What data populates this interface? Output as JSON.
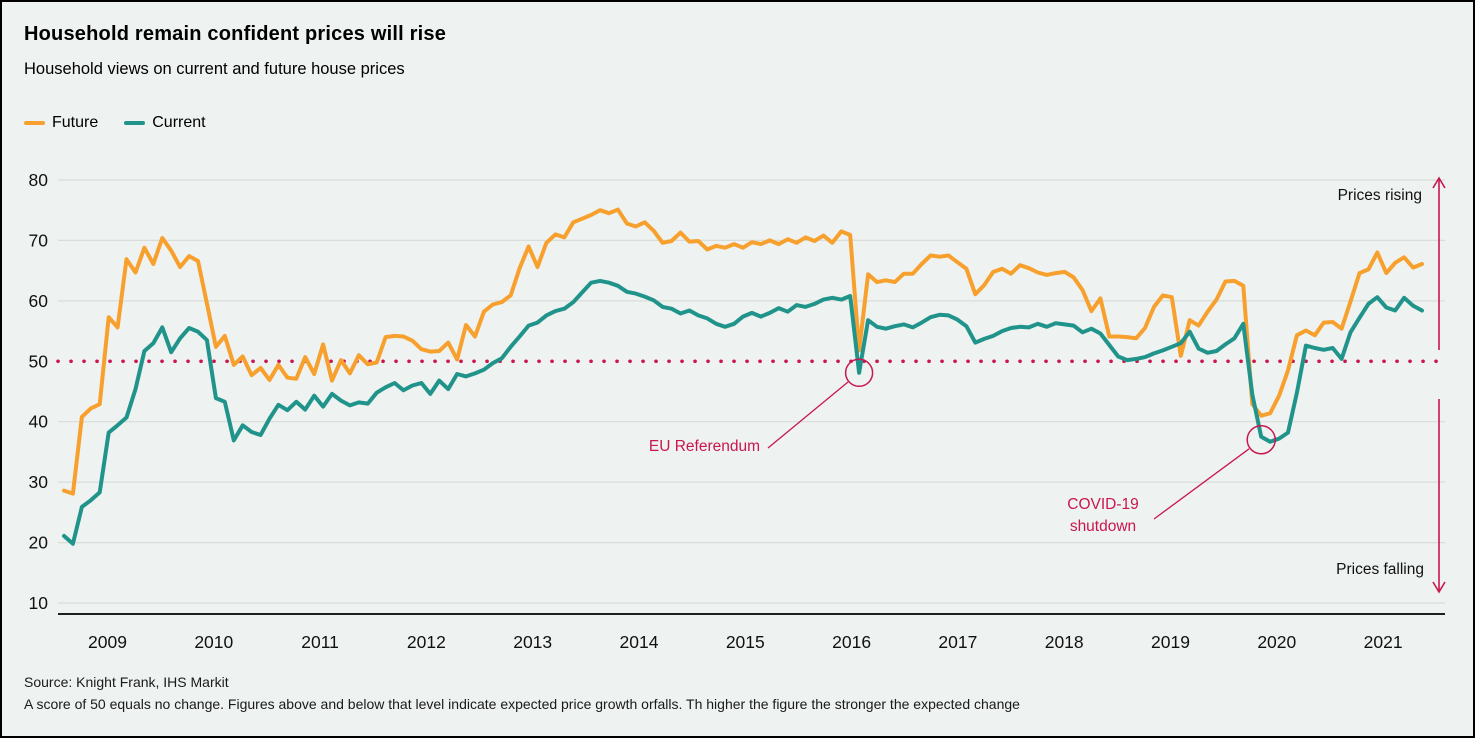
{
  "title": "Household remain confident prices will rise",
  "subtitle": "Household views on current and future house prices",
  "legend": {
    "future": {
      "label": "Future",
      "color": "#f7a02e"
    },
    "current": {
      "label": "Current",
      "color": "#20948b"
    }
  },
  "footer": {
    "source": "Source: Knight Frank, IHS Markit",
    "note": "A score of 50 equals no change. Figures above and below that level indicate expected price growth orfalls. Th higher the figure the stronger the expected change"
  },
  "chart_data": {
    "type": "line",
    "frequency": "monthly",
    "x_start": "2009-02",
    "x_end": "2021-10",
    "x_tick_labels": [
      "2009",
      "2010",
      "2011",
      "2012",
      "2013",
      "2014",
      "2015",
      "2016",
      "2017",
      "2018",
      "2019",
      "2020",
      "2021"
    ],
    "y_ticks": [
      10,
      20,
      30,
      40,
      50,
      60,
      70,
      80
    ],
    "ylim": [
      10,
      80
    ],
    "grid": "horizontal",
    "legend_position": "top-left",
    "baseline": {
      "value": 50,
      "style": "dotted",
      "color": "#c9174e"
    },
    "colors": {
      "background": "#eef2f0",
      "gridline": "#d9ddda",
      "axis": "#1f1f1f",
      "accent": "#c9174e"
    },
    "series": [
      {
        "name": "Future",
        "color": "#f7a02e",
        "values": [
          28.6,
          28.1,
          40.8,
          42.2,
          42.9,
          57.3,
          55.6,
          66.9,
          64.7,
          68.8,
          66.1,
          70.4,
          68.3,
          65.6,
          67.4,
          66.6,
          59.6,
          52.4,
          54.2,
          49.4,
          50.8,
          47.7,
          48.9,
          46.9,
          49.4,
          47.3,
          47.1,
          50.7,
          47.9,
          52.8,
          46.8,
          50.2,
          48.0,
          51.0,
          49.5,
          49.8,
          54.0,
          54.2,
          54.1,
          53.4,
          52.0,
          51.6,
          51.7,
          53.1,
          50.3,
          56.0,
          54.1,
          58.2,
          59.4,
          59.8,
          60.9,
          65.4,
          69.0,
          65.6,
          69.6,
          71.0,
          70.5,
          73.0,
          73.6,
          74.2,
          75.0,
          74.5,
          75.1,
          72.8,
          72.3,
          73.0,
          71.6,
          69.6,
          69.9,
          71.3,
          69.8,
          69.9,
          68.5,
          69.1,
          68.8,
          69.4,
          68.8,
          69.7,
          69.4,
          70.0,
          69.4,
          70.2,
          69.6,
          70.5,
          69.9,
          70.8,
          69.6,
          71.5,
          70.9,
          51.8,
          64.4,
          63.1,
          63.4,
          63.1,
          64.5,
          64.5,
          66.1,
          67.5,
          67.3,
          67.5,
          66.4,
          65.3,
          61.1,
          62.6,
          64.8,
          65.3,
          64.5,
          65.9,
          65.4,
          64.7,
          64.3,
          64.6,
          64.8,
          63.9,
          61.8,
          58.3,
          60.4,
          54.1,
          54.1,
          54.0,
          53.8,
          55.5,
          59.0,
          60.9,
          60.6,
          50.9,
          56.8,
          55.9,
          58.2,
          60.2,
          63.2,
          63.3,
          62.5,
          42.9,
          41.0,
          41.4,
          44.3,
          48.5,
          54.3,
          55.1,
          54.3,
          56.4,
          56.5,
          55.4,
          59.9,
          64.6,
          65.2,
          68.0,
          64.6,
          66.3,
          67.2,
          65.5,
          66.1
        ]
      },
      {
        "name": "Current",
        "color": "#20948b",
        "values": [
          21.1,
          19.8,
          25.9,
          27.0,
          28.3,
          38.2,
          39.4,
          40.7,
          45.4,
          51.7,
          53.0,
          55.6,
          51.5,
          53.8,
          55.5,
          54.9,
          53.5,
          43.9,
          43.3,
          36.9,
          39.4,
          38.3,
          37.8,
          40.5,
          42.8,
          41.9,
          43.3,
          42.0,
          44.3,
          42.5,
          44.6,
          43.5,
          42.7,
          43.2,
          43.0,
          44.8,
          45.7,
          46.4,
          45.2,
          46.0,
          46.4,
          44.6,
          46.8,
          45.4,
          47.9,
          47.5,
          48.0,
          48.6,
          49.7,
          50.5,
          52.4,
          54.1,
          55.9,
          56.4,
          57.6,
          58.3,
          58.7,
          59.8,
          61.4,
          63.0,
          63.3,
          63.0,
          62.5,
          61.5,
          61.2,
          60.7,
          60.1,
          59.0,
          58.7,
          57.9,
          58.4,
          57.6,
          57.1,
          56.2,
          55.7,
          56.2,
          57.4,
          58.0,
          57.4,
          58.0,
          58.8,
          58.2,
          59.3,
          59.0,
          59.5,
          60.2,
          60.5,
          60.2,
          60.8,
          48.1,
          56.8,
          55.7,
          55.4,
          55.8,
          56.1,
          55.6,
          56.4,
          57.3,
          57.7,
          57.6,
          56.9,
          55.8,
          53.1,
          53.7,
          54.2,
          55.0,
          55.5,
          55.7,
          55.6,
          56.2,
          55.7,
          56.3,
          56.1,
          55.9,
          54.8,
          55.4,
          54.6,
          52.7,
          50.8,
          50.2,
          50.4,
          50.7,
          51.3,
          51.8,
          52.4,
          53.0,
          54.9,
          52.1,
          51.4,
          51.7,
          52.8,
          53.8,
          56.2,
          44.5,
          37.5,
          36.7,
          37.2,
          38.2,
          44.8,
          52.6,
          52.2,
          51.9,
          52.2,
          50.4,
          54.8,
          57.2,
          59.5,
          60.6,
          58.9,
          58.4,
          60.5,
          59.2,
          58.4
        ]
      }
    ],
    "annotations": {
      "eu_referendum": {
        "label": "EU Referendum",
        "month_index": 89,
        "value": 48.1
      },
      "covid": {
        "label": "COVID-19 shutdown",
        "line1": "COVID-19",
        "line2": "shutdown",
        "month_index": 134,
        "value": 37.0
      },
      "rising": "Prices rising",
      "falling": "Prices falling"
    }
  }
}
